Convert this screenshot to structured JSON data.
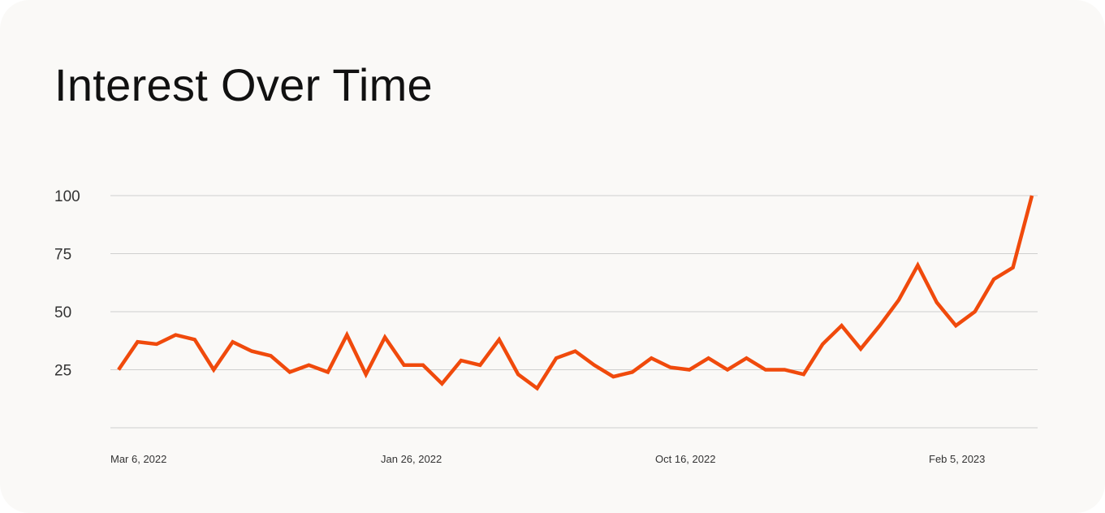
{
  "title": "Interest Over Time",
  "colors": {
    "line": "#f04a0c",
    "grid": "#cfcfcf",
    "background": "#faf9f7"
  },
  "chart_data": {
    "type": "line",
    "title": "Interest Over Time",
    "xlabel": "",
    "ylabel": "",
    "ylim": [
      0,
      100
    ],
    "yticks": [
      25,
      50,
      75,
      100
    ],
    "xtick_labels": [
      "Mar 6, 2022",
      "Jan 26, 2022",
      "Oct 16, 2022",
      "Feb 5, 2023"
    ],
    "grid": true,
    "legend": "none",
    "series": [
      {
        "values": [
          25,
          37,
          36,
          40,
          38,
          25,
          37,
          33,
          31,
          24,
          27,
          24,
          40,
          23,
          39,
          27,
          27,
          19,
          29,
          27,
          38,
          23,
          17,
          30,
          33,
          27,
          22,
          24,
          30,
          26,
          25,
          30,
          25,
          30,
          25,
          25,
          23,
          36,
          44,
          34,
          44,
          55,
          70,
          54,
          44,
          50,
          64,
          69,
          100
        ]
      }
    ]
  }
}
